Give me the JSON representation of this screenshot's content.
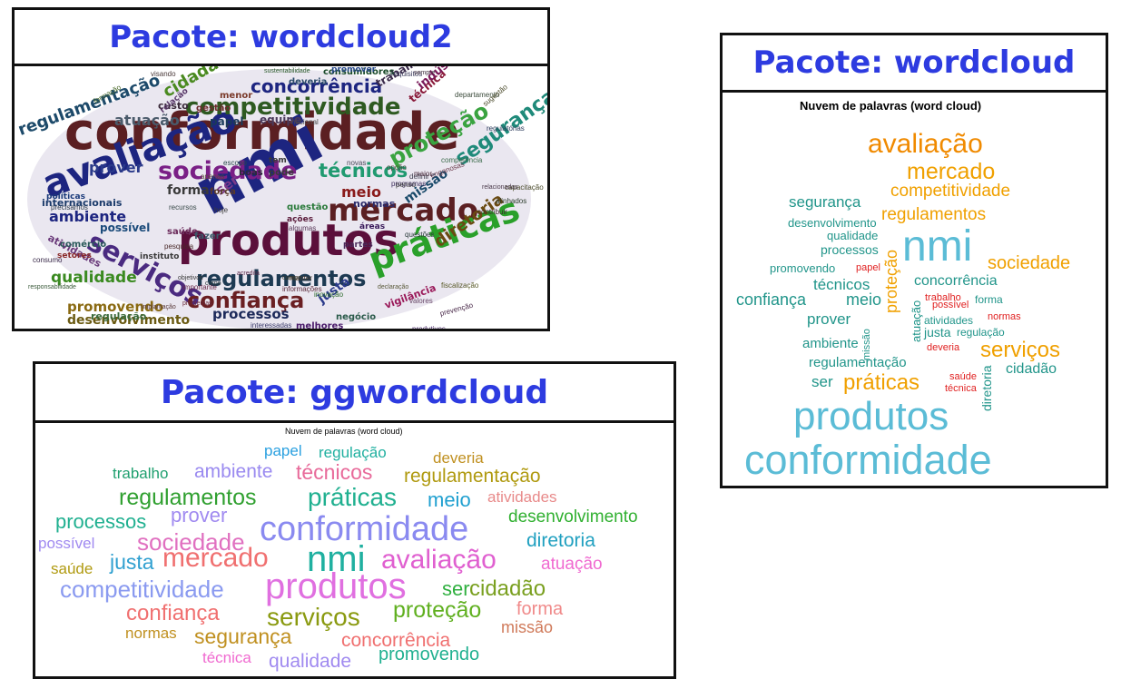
{
  "wordcloud2": {
    "title": "Pacote: wordcloud2",
    "words": [
      {
        "text": "conformidade",
        "color": "#5b1f22"
      },
      {
        "text": "produtos",
        "color": "#5b0f3b"
      },
      {
        "text": "nmi",
        "color": "#1d2580"
      },
      {
        "text": "avaliação",
        "color": "#1d2580"
      },
      {
        "text": "mercado",
        "color": "#5b1f22"
      },
      {
        "text": "práticas",
        "color": "#2aa02a"
      },
      {
        "text": "serviços",
        "color": "#4a2a80"
      },
      {
        "text": "sociedade",
        "color": "#7a1f86"
      },
      {
        "text": "competitividade",
        "color": "#2e5a21"
      },
      {
        "text": "regulamentos",
        "color": "#1d3a52"
      },
      {
        "text": "confiança",
        "color": "#6a1f22"
      },
      {
        "text": "proteção",
        "color": "#3aa340"
      },
      {
        "text": "segurança",
        "color": "#1f8a7a"
      },
      {
        "text": "técnicos",
        "color": "#209a70"
      },
      {
        "text": "concorrência",
        "color": "#1d2580"
      },
      {
        "text": "regulamentação",
        "color": "#1d4a6a"
      },
      {
        "text": "cidadão",
        "color": "#4a8a20"
      },
      {
        "text": "qualidade",
        "color": "#3a8a20"
      },
      {
        "text": "promovendo",
        "color": "#8a6a12"
      },
      {
        "text": "desenvolvimento",
        "color": "#6a5a12"
      },
      {
        "text": "processos",
        "color": "#1d2a5a"
      },
      {
        "text": "ambiente",
        "color": "#1d2580"
      },
      {
        "text": "prover",
        "color": "#2a3a8a"
      },
      {
        "text": "diretoria",
        "color": "#6a4a12"
      },
      {
        "text": "meio",
        "color": "#8a1a1a"
      },
      {
        "text": "justa",
        "color": "#2a3a8a"
      },
      {
        "text": "missão",
        "color": "#1a4a6a"
      },
      {
        "text": "forma",
        "color": "#3a3a3a"
      },
      {
        "text": "atuação",
        "color": "#4a5a6a"
      },
      {
        "text": "ser",
        "color": "#7a3a8a"
      },
      {
        "text": "atividades",
        "color": "#6a3a7a"
      },
      {
        "text": "possível",
        "color": "#1a4a7a"
      },
      {
        "text": "regulação",
        "color": "#3a6a3a"
      },
      {
        "text": "papel",
        "color": "#1a3a5a"
      },
      {
        "text": "equipe",
        "color": "#4a3a5a"
      },
      {
        "text": "vigilância",
        "color": "#9a1a5a"
      },
      {
        "text": "técnica",
        "color": "#8a1a3a"
      },
      {
        "text": "saúde",
        "color": "#6a2a5a"
      },
      {
        "text": "custo",
        "color": "#3a2a3a"
      },
      {
        "text": "gestão",
        "color": "#6a2a2a"
      },
      {
        "text": "questão",
        "color": "#2a7a3a"
      },
      {
        "text": "indústria",
        "color": "#7a1a5a"
      },
      {
        "text": "internacionais",
        "color": "#1a3a6a"
      },
      {
        "text": "trabalho",
        "color": "#3a2a4a"
      },
      {
        "text": "consumidores",
        "color": "#1a4a2a"
      },
      {
        "text": "menor",
        "color": "#7a3a2a"
      },
      {
        "text": "melhores",
        "color": "#4a1a6a"
      },
      {
        "text": "negócio",
        "color": "#2a5a4a"
      },
      {
        "text": "interessadas",
        "color": "#3a3a6a"
      },
      {
        "text": "capacitação",
        "color": "#4a4a2a"
      },
      {
        "text": "regulatórias",
        "color": "#2a3a5a"
      },
      {
        "text": "promover",
        "color": "#2a4a8a"
      },
      {
        "text": "informações",
        "color": "#5a2a3a"
      },
      {
        "text": "importante",
        "color": "#6a2a4a"
      },
      {
        "text": "inovação",
        "color": "#2a6a2a"
      },
      {
        "text": "produtivos",
        "color": "#4a2a6a"
      },
      {
        "text": "comércio",
        "color": "#2a5a5a"
      },
      {
        "text": "setores",
        "color": "#8a2a2a"
      },
      {
        "text": "políticas",
        "color": "#1a3a7a"
      },
      {
        "text": "instituto",
        "color": "#3a3a3a"
      },
      {
        "text": "pesquisa",
        "color": "#4a2a2a"
      },
      {
        "text": "alinhados",
        "color": "#2a3a2a"
      },
      {
        "text": "fiscalização",
        "color": "#5a5a2a"
      },
      {
        "text": "contribuir",
        "color": "#3a2a2a"
      },
      {
        "text": "ações",
        "color": "#5a1a3a"
      },
      {
        "text": "áreas",
        "color": "#3a1a5a"
      },
      {
        "text": "normas",
        "color": "#2a2a6a"
      },
      {
        "text": "pode",
        "color": "#3a3a3a"
      },
      {
        "text": "deveria",
        "color": "#2a4a6a"
      },
      {
        "text": "nacional",
        "color": "#4a4a4a"
      },
      {
        "text": "requisitos",
        "color": "#3a3a5a"
      },
      {
        "text": "sustentabilidade",
        "color": "#2a5a2a"
      },
      {
        "text": "relação",
        "color": "#5a3a6a"
      },
      {
        "text": "formação",
        "color": "#4a6a2a"
      },
      {
        "text": "valores",
        "color": "#6a4a6a"
      },
      {
        "text": "prevenção",
        "color": "#4a2a4a"
      },
      {
        "text": "problemas",
        "color": "#6a2a3a"
      },
      {
        "text": "responsabilidade",
        "color": "#3a5a3a"
      },
      {
        "text": "implantação",
        "color": "#5a3a3a"
      },
      {
        "text": "questões",
        "color": "#2a3a3a"
      },
      {
        "text": "competência",
        "color": "#3a6a4a"
      },
      {
        "text": "opção",
        "color": "#4a4a3a"
      },
      {
        "text": "programas",
        "color": "#3a2a5a"
      },
      {
        "text": "enganosas",
        "color": "#6a3a4a"
      },
      {
        "text": "definir",
        "color": "#3a3a4a"
      },
      {
        "text": "relacionadas",
        "color": "#4a3a4a"
      },
      {
        "text": "declaração",
        "color": "#5a5a3a"
      },
      {
        "text": "partes",
        "color": "#4a2a5a"
      },
      {
        "text": "apenas",
        "color": "#5a4a3a"
      },
      {
        "text": "fazer",
        "color": "#3a5a6a"
      },
      {
        "text": "boas",
        "color": "#2a2a3a"
      },
      {
        "text": "algumas",
        "color": "#5a3a5a"
      },
      {
        "text": "sempre",
        "color": "#3a2a3a"
      },
      {
        "text": "escopo",
        "color": "#2a4a4a"
      },
      {
        "text": "novas",
        "color": "#4a4a5a"
      },
      {
        "text": "penso",
        "color": "#3a3a3a"
      },
      {
        "text": "precisamos",
        "color": "#2a3a4a"
      },
      {
        "text": "hoje",
        "color": "#3a3a3a"
      },
      {
        "text": "força",
        "color": "#5a3a2a"
      },
      {
        "text": "maior",
        "color": "#4a2a3a"
      },
      {
        "text": "tem",
        "color": "#3a3a3a"
      },
      {
        "text": "visando",
        "color": "#4a3a3a"
      },
      {
        "text": "departamento",
        "color": "#3a4a3a"
      },
      {
        "text": "acredita",
        "color": "#5a2a4a"
      },
      {
        "text": "recursos",
        "color": "#3a4a4a"
      },
      {
        "text": "sugestão",
        "color": "#4a4a2a"
      },
      {
        "text": "consumo",
        "color": "#3a2a4a"
      },
      {
        "text": "manter",
        "color": "#4a3a2a"
      },
      {
        "text": "campo",
        "color": "#3a3a2a"
      },
      {
        "text": "corpo",
        "color": "#2a3a3a"
      },
      {
        "text": "objetivos",
        "color": "#3a3a3a"
      }
    ]
  },
  "wordcloud": {
    "title": "Pacote: wordcloud",
    "plot_title": "Nuvem de palavras (word cloud)",
    "words": [
      {
        "text": "avaliação",
        "color": "#f08a00"
      },
      {
        "text": "mercado",
        "color": "#f0a000"
      },
      {
        "text": "competitividade",
        "color": "#f0a000"
      },
      {
        "text": "segurança",
        "color": "#21958a"
      },
      {
        "text": "regulamentos",
        "color": "#f0a000"
      },
      {
        "text": "desenvolvimento",
        "color": "#21958a"
      },
      {
        "text": "qualidade",
        "color": "#21958a"
      },
      {
        "text": "processos",
        "color": "#21958a"
      },
      {
        "text": "nmi",
        "color": "#5bbcd6"
      },
      {
        "text": "sociedade",
        "color": "#f0a000"
      },
      {
        "text": "promovendo",
        "color": "#21958a"
      },
      {
        "text": "papel",
        "color": "#e02020"
      },
      {
        "text": "concorrência",
        "color": "#21958a"
      },
      {
        "text": "técnicos",
        "color": "#21958a"
      },
      {
        "text": "confiança",
        "color": "#21958a"
      },
      {
        "text": "meio",
        "color": "#21958a"
      },
      {
        "text": "proteção",
        "color": "#f0a000"
      },
      {
        "text": "trabalho",
        "color": "#e02020"
      },
      {
        "text": "atuação",
        "color": "#21958a"
      },
      {
        "text": "possível",
        "color": "#e02020"
      },
      {
        "text": "forma",
        "color": "#21958a"
      },
      {
        "text": "prover",
        "color": "#21958a"
      },
      {
        "text": "missão",
        "color": "#21958a"
      },
      {
        "text": "atividades",
        "color": "#21958a"
      },
      {
        "text": "normas",
        "color": "#e02020"
      },
      {
        "text": "justa",
        "color": "#21958a"
      },
      {
        "text": "regulação",
        "color": "#21958a"
      },
      {
        "text": "ambiente",
        "color": "#21958a"
      },
      {
        "text": "deveria",
        "color": "#e02020"
      },
      {
        "text": "serviços",
        "color": "#f0a000"
      },
      {
        "text": "regulamentação",
        "color": "#21958a"
      },
      {
        "text": "cidadão",
        "color": "#21958a"
      },
      {
        "text": "diretoria",
        "color": "#21958a"
      },
      {
        "text": "ser",
        "color": "#21958a"
      },
      {
        "text": "práticas",
        "color": "#f0a000"
      },
      {
        "text": "saúde",
        "color": "#e02020"
      },
      {
        "text": "técnica",
        "color": "#e02020"
      },
      {
        "text": "produtos",
        "color": "#5bbcd6"
      },
      {
        "text": "conformidade",
        "color": "#5bbcd6"
      }
    ]
  },
  "ggwordcloud": {
    "title": "Pacote: ggwordcloud",
    "plot_title": "Nuvem de palavras (word cloud)",
    "words": [
      {
        "text": "papel",
        "color": "#2aa0e0"
      },
      {
        "text": "regulação",
        "color": "#20b0a0"
      },
      {
        "text": "deveria",
        "color": "#c09020"
      },
      {
        "text": "trabalho",
        "color": "#20a070"
      },
      {
        "text": "ambiente",
        "color": "#9a8af0"
      },
      {
        "text": "técnicos",
        "color": "#e86a9a"
      },
      {
        "text": "regulamentação",
        "color": "#b09a10"
      },
      {
        "text": "regulamentos",
        "color": "#30a030"
      },
      {
        "text": "práticas",
        "color": "#20b090"
      },
      {
        "text": "meio",
        "color": "#20a0d0"
      },
      {
        "text": "atividades",
        "color": "#e88a8a"
      },
      {
        "text": "processos",
        "color": "#20b090"
      },
      {
        "text": "prover",
        "color": "#a08af0"
      },
      {
        "text": "conformidade",
        "color": "#8a8af0"
      },
      {
        "text": "desenvolvimento",
        "color": "#30b030"
      },
      {
        "text": "possível",
        "color": "#a08af0"
      },
      {
        "text": "sociedade",
        "color": "#e070c0"
      },
      {
        "text": "diretoria",
        "color": "#20a0c0"
      },
      {
        "text": "saúde",
        "color": "#b09a10"
      },
      {
        "text": "justa",
        "color": "#30a0d0"
      },
      {
        "text": "mercado",
        "color": "#f07070"
      },
      {
        "text": "nmi",
        "color": "#20b0a0"
      },
      {
        "text": "avaliação",
        "color": "#e060d0"
      },
      {
        "text": "atuação",
        "color": "#f06ad0"
      },
      {
        "text": "competitividade",
        "color": "#8a9af0"
      },
      {
        "text": "produtos",
        "color": "#e070e0"
      },
      {
        "text": "ser",
        "color": "#30b040"
      },
      {
        "text": "cidadão",
        "color": "#7aa020"
      },
      {
        "text": "confiança",
        "color": "#f07070"
      },
      {
        "text": "serviços",
        "color": "#8a9a10"
      },
      {
        "text": "proteção",
        "color": "#60b020"
      },
      {
        "text": "forma",
        "color": "#f08a8a"
      },
      {
        "text": "normas",
        "color": "#c09020"
      },
      {
        "text": "segurança",
        "color": "#c09020"
      },
      {
        "text": "missão",
        "color": "#d07a5a"
      },
      {
        "text": "concorrência",
        "color": "#f07070"
      },
      {
        "text": "técnica",
        "color": "#f06ad0"
      },
      {
        "text": "qualidade",
        "color": "#a08af0"
      },
      {
        "text": "promovendo",
        "color": "#20b090"
      }
    ]
  }
}
